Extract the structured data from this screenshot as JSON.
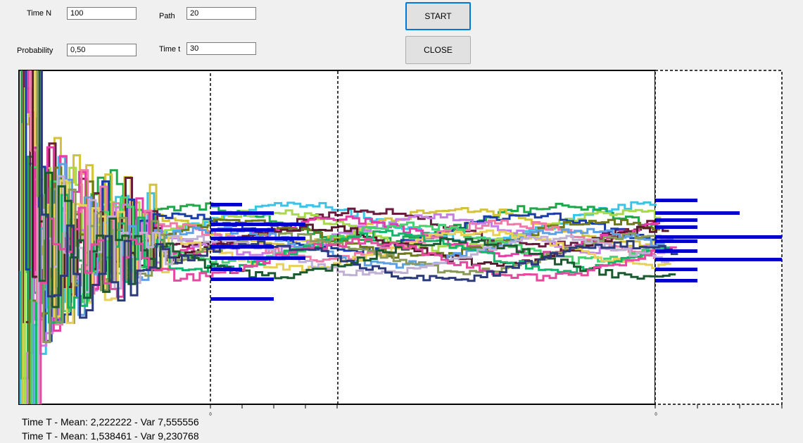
{
  "controls": {
    "time_n_label": "Time N",
    "time_n_value": "100",
    "probability_label": "Probability",
    "probability_value": "0,50",
    "path_label": "Path",
    "path_value": "20",
    "time_t_label": "Time t",
    "time_t_value": "30",
    "start_label": "START",
    "close_label": "CLOSE"
  },
  "axis": {
    "left_hist_zero": "0",
    "right_hist_zero": "0"
  },
  "results": {
    "line1": "Time T - Mean: 2,222222 - Var 7,555556",
    "line2": "Time T - Mean: 1,538461 - Var 9,230768"
  },
  "colors": {
    "histogram": "#0000cc",
    "path_colors": [
      "#3cc3e6",
      "#1ea84a",
      "#d4c23a",
      "#6a1a3c",
      "#a8d94a",
      "#1a3ca8",
      "#c67ee6",
      "#e63ca8",
      "#6e7a1a",
      "#ee7aa8",
      "#46d26e",
      "#5a1a2e",
      "#5ea0e6",
      "#e8d05a",
      "#12b46a",
      "#8a9a5a",
      "#c0b0d4",
      "#1a5a2e",
      "#e64aa0",
      "#2a3a7a"
    ]
  }
}
